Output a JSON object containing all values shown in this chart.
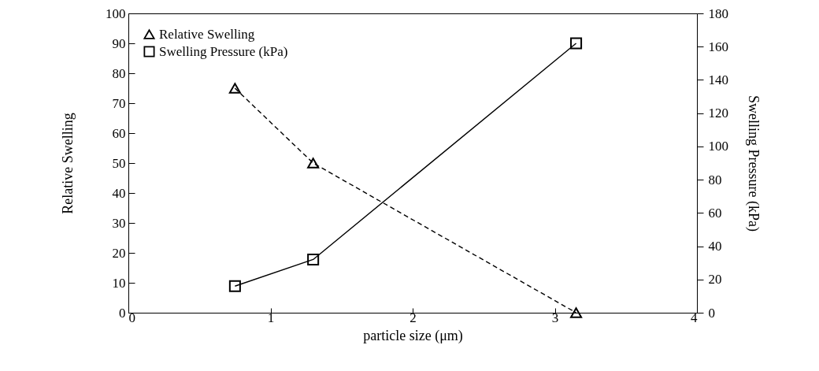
{
  "chart_data": {
    "type": "line",
    "xlabel": "particle size (μm)",
    "ylabel": "Relative Swelling",
    "y2label": "Swelling Pressure (kPa)",
    "x": [
      0.75,
      1.3,
      3.15
    ],
    "series": [
      {
        "name": "Relative Swelling",
        "color": "#000000",
        "values": [
          75,
          50,
          0
        ],
        "marker": "triangle",
        "line_style": "dashed"
      },
      {
        "name": "Swelling Pressure (kPa)",
        "color": "#000000",
        "values": [
          16,
          32,
          162
        ],
        "marker": "square",
        "line_style": "solid",
        "axis": "y2"
      }
    ],
    "xlim": [
      0,
      4
    ],
    "xticks": [
      0,
      1,
      2,
      3,
      4
    ],
    "ylim": [
      0,
      100
    ],
    "yticks": [
      0,
      10,
      20,
      30,
      40,
      50,
      60,
      70,
      80,
      90,
      100
    ],
    "y2lim": [
      0,
      180
    ],
    "y2ticks": [
      0,
      20,
      40,
      60,
      80,
      100,
      120,
      140,
      160,
      180
    ],
    "legend": "top left",
    "grid": false
  }
}
